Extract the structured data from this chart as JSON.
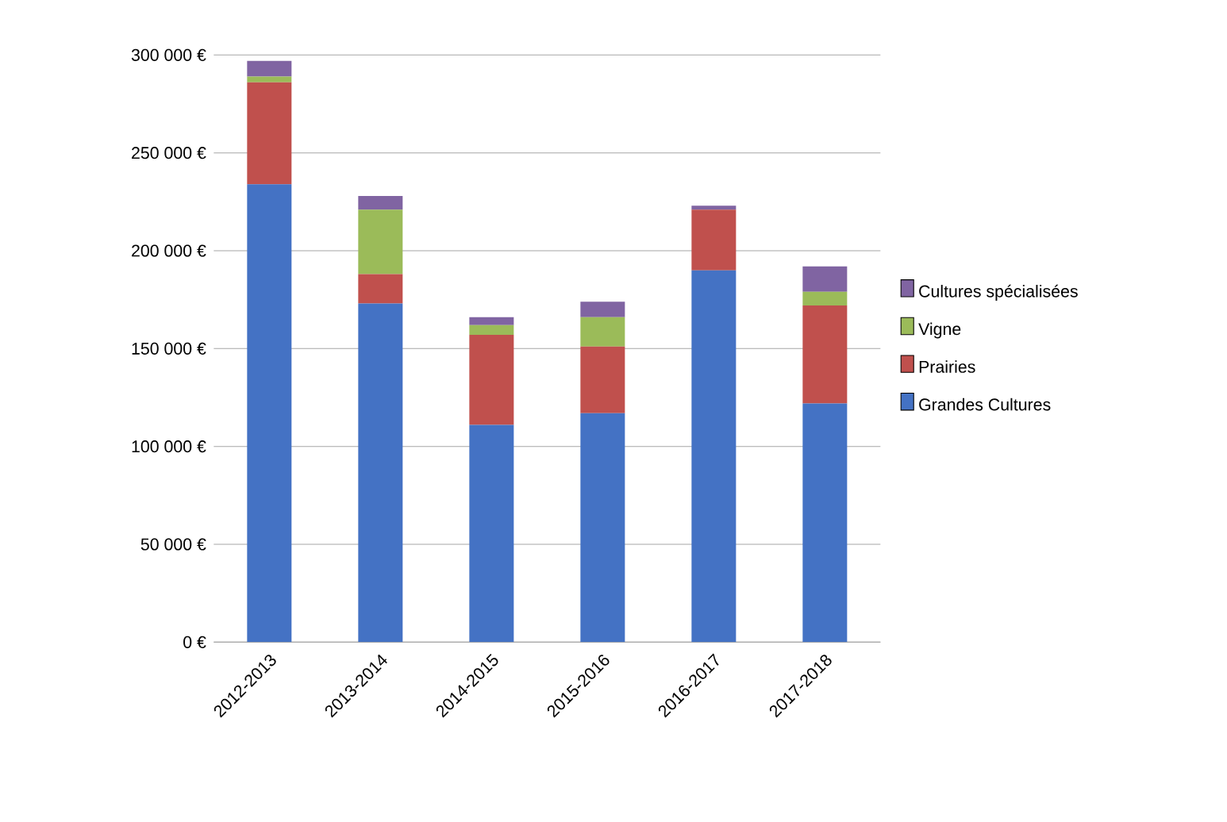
{
  "chart_data": {
    "type": "bar",
    "stacked": true,
    "categories": [
      "2012-2013",
      "2013-2014",
      "2014-2015",
      "2015-2016",
      "2016-2017",
      "2017-2018"
    ],
    "series": [
      {
        "name": "Grandes Cultures",
        "color": "#4472c4",
        "values": [
          234000,
          173000,
          111000,
          117000,
          190000,
          122000
        ]
      },
      {
        "name": "Prairies",
        "color": "#c0504d",
        "values": [
          52000,
          15000,
          46000,
          34000,
          31000,
          50000
        ]
      },
      {
        "name": "Vigne",
        "color": "#9bbb59",
        "values": [
          3000,
          33000,
          5000,
          15000,
          0,
          7000
        ]
      },
      {
        "name": "Cultures spécialisées",
        "color": "#8064a2",
        "values": [
          8000,
          7000,
          4000,
          8000,
          2000,
          13000
        ]
      }
    ],
    "ylim": [
      0,
      300000
    ],
    "yticks": [
      {
        "value": 0,
        "label": "0 €"
      },
      {
        "value": 50000,
        "label": "50 000 €"
      },
      {
        "value": 100000,
        "label": "100 000 €"
      },
      {
        "value": 150000,
        "label": "150 000 €"
      },
      {
        "value": 200000,
        "label": "200 000 €"
      },
      {
        "value": 250000,
        "label": "250 000 €"
      },
      {
        "value": 300000,
        "label": "300 000 €"
      }
    ],
    "grid": "y",
    "legend": "right"
  }
}
